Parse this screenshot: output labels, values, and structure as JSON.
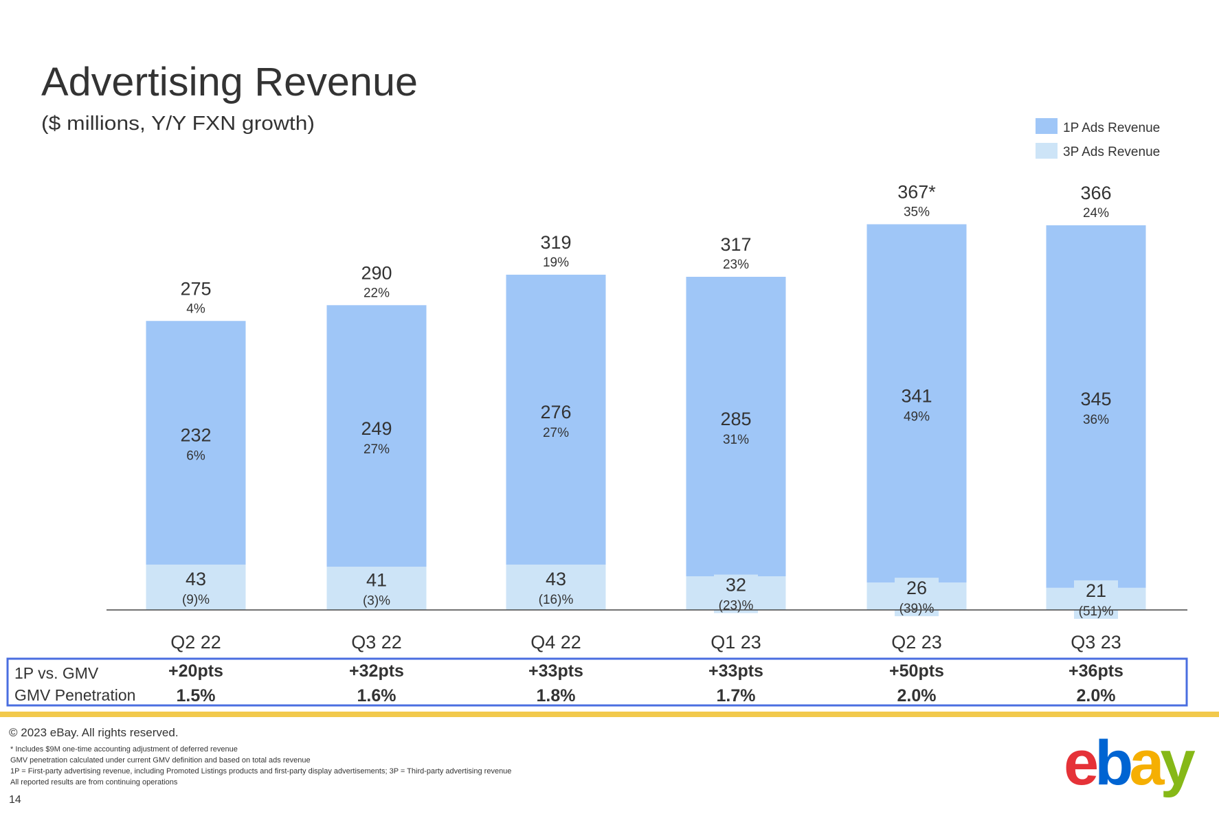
{
  "title": "Advertising Revenue",
  "subtitle": "($ millions, Y/Y FXN growth)",
  "colors": {
    "1p": "#9fc6f7",
    "3p": "#cde4f7",
    "box": "#4a6ee0",
    "footer_bar": "#f2c94c",
    "text": "#333333"
  },
  "chart_data": {
    "type": "bar",
    "stacked": true,
    "title": "Advertising Revenue",
    "subtitle": "($ millions, Y/Y FXN growth)",
    "categories": [
      "Q2 22",
      "Q3 22",
      "Q4 22",
      "Q1 23",
      "Q2 23",
      "Q3 23"
    ],
    "legend_position": "top-right",
    "grid": false,
    "ylim": [
      0,
      380
    ],
    "series": [
      {
        "name": "3P Ads Revenue",
        "values": [
          43,
          41,
          43,
          32,
          26,
          21
        ],
        "growth": [
          "(9)%",
          "(3)%",
          "(16)%",
          "(23)%",
          "(39)%",
          "(51)%"
        ]
      },
      {
        "name": "1P Ads Revenue",
        "values": [
          232,
          249,
          276,
          285,
          341,
          345
        ],
        "growth": [
          "6%",
          "27%",
          "27%",
          "31%",
          "49%",
          "36%"
        ]
      }
    ],
    "totals": {
      "labels": [
        "275",
        "290",
        "319",
        "317",
        "367*",
        "366"
      ],
      "values": [
        275,
        290,
        319,
        317,
        367,
        366
      ],
      "growth": [
        "4%",
        "22%",
        "19%",
        "23%",
        "35%",
        "24%"
      ]
    }
  },
  "metrics": {
    "rows": [
      {
        "label": "1P vs. GMV",
        "values": [
          "+20pts",
          "+32pts",
          "+33pts",
          "+33pts",
          "+50pts",
          "+36pts"
        ]
      },
      {
        "label": "GMV Penetration",
        "values": [
          "1.5%",
          "1.6%",
          "1.8%",
          "1.7%",
          "2.0%",
          "2.0%"
        ]
      }
    ]
  },
  "footer": {
    "copyright": "© 2023 eBay. All rights reserved.",
    "notes": [
      "* Includes $9M one-time accounting adjustment of deferred revenue",
      "GMV penetration calculated under current GMV definition and based on total ads revenue",
      "1P = First-party advertising revenue, including Promoted Listings products and first-party display advertisements; 3P = Third-party advertising revenue",
      "All reported results are from continuing operations"
    ],
    "page_number": "14",
    "logo": "ebay"
  }
}
